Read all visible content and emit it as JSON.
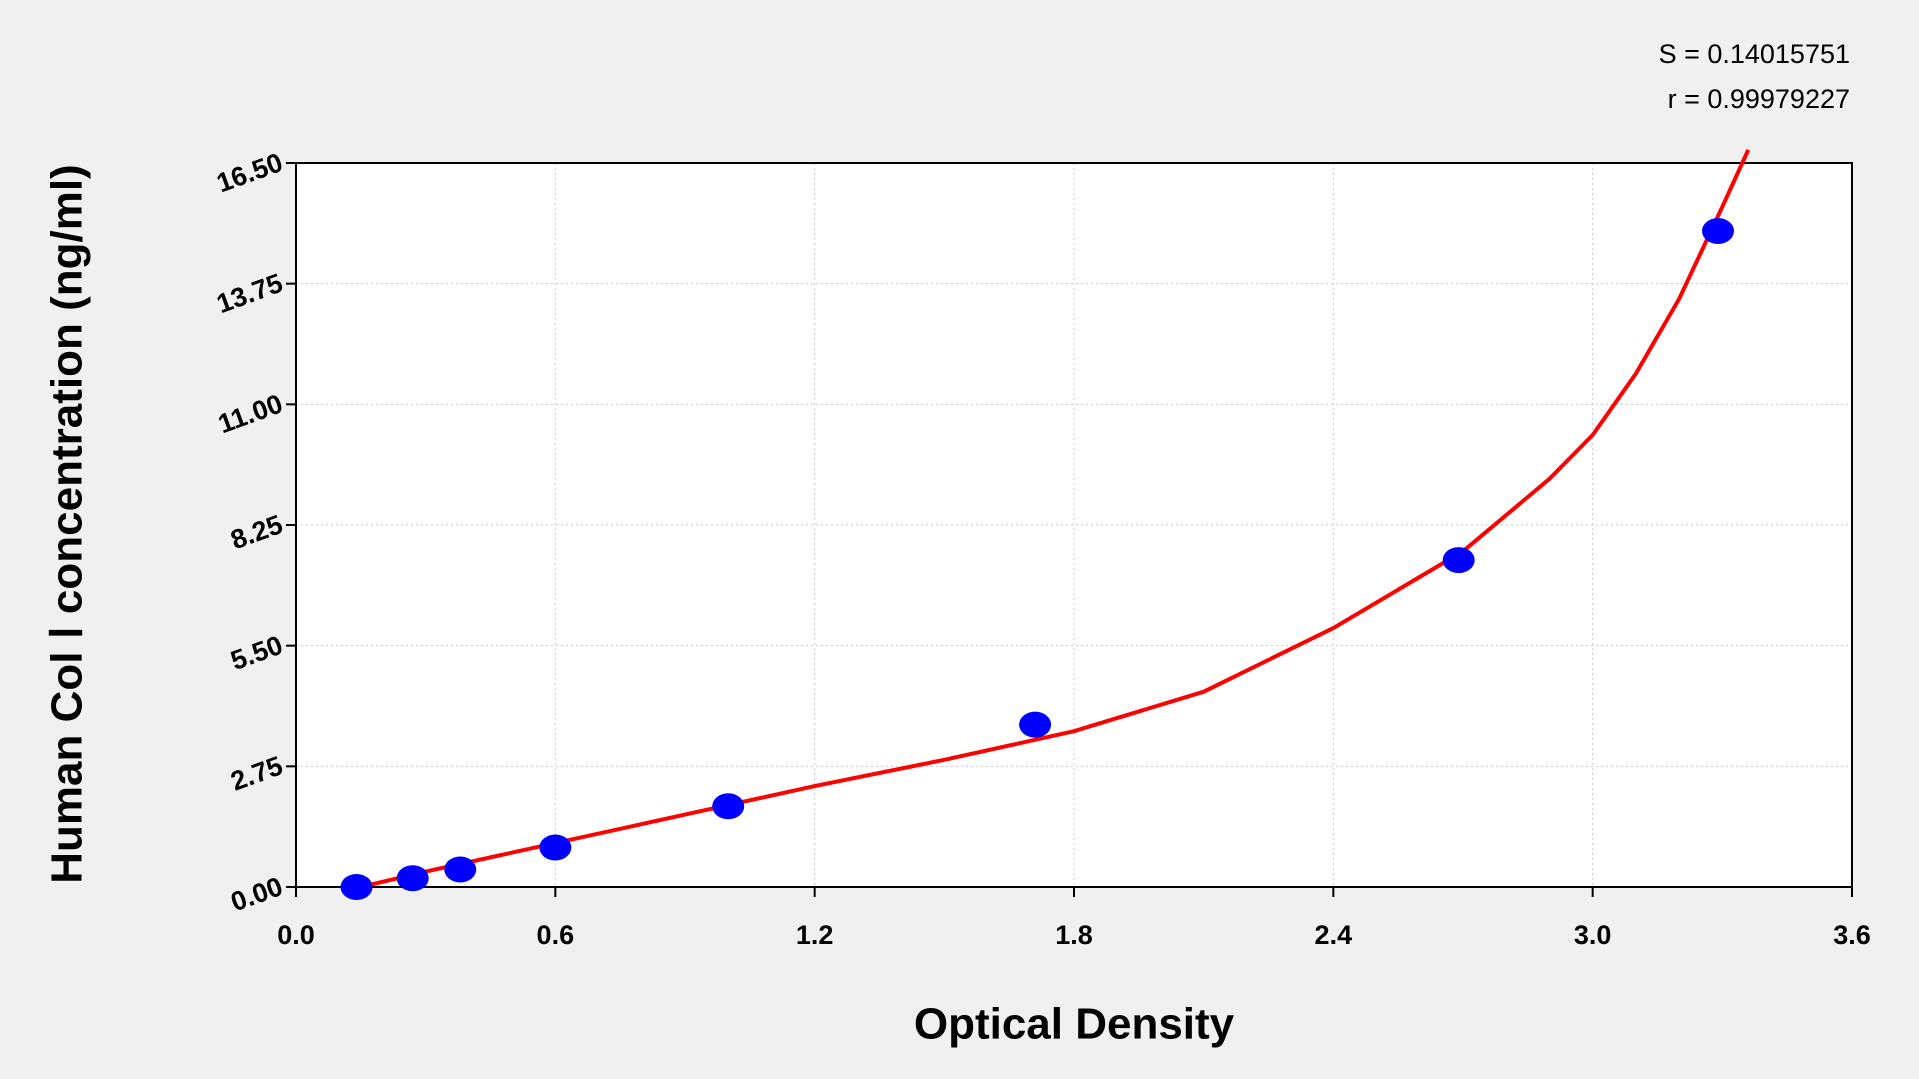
{
  "chart_data": {
    "type": "scatter",
    "x_label": "Optical Density",
    "y_label": "Human Col Ⅰ concentration (ng/ml)",
    "annotations": [
      "S = 0.14015751",
      "r = 0.99979227"
    ],
    "xlim": [
      0,
      3.6
    ],
    "ylim": [
      0,
      16.5
    ],
    "xticks": [
      {
        "value": 0,
        "label": "0.0"
      },
      0.6,
      1.2,
      1.8,
      2.4,
      {
        "value": 3,
        "label": "3.0"
      },
      3.6
    ],
    "yticks": [
      {
        "value": 0,
        "label": "0.00"
      },
      2.75,
      {
        "value": 5.5,
        "label": "5.50"
      },
      8.25,
      {
        "value": 11,
        "label": "11.00"
      },
      13.75,
      {
        "value": 16.5,
        "label": "16.50"
      }
    ],
    "grid": true,
    "series": [
      {
        "color": "#0000ff",
        "x": [
          0.14,
          0.27,
          0.38,
          0.6,
          1.0,
          1.71,
          2.69,
          3.29
        ],
        "values": [
          0.0,
          0.2,
          0.4,
          0.9,
          1.84,
          3.7,
          7.45,
          14.95
        ]
      }
    ],
    "fit_curve": {
      "color": "#ff0000",
      "x": [
        0.15,
        0.3,
        0.6,
        0.9,
        1.2,
        1.5,
        1.8,
        2.1,
        2.4,
        2.7,
        2.9,
        3.0,
        3.1,
        3.2,
        3.3,
        3.36
      ],
      "values": [
        0.0,
        0.35,
        1.0,
        1.65,
        2.3,
        2.9,
        3.55,
        4.45,
        5.9,
        7.65,
        9.3,
        10.3,
        11.7,
        13.4,
        15.5,
        16.8
      ]
    }
  }
}
